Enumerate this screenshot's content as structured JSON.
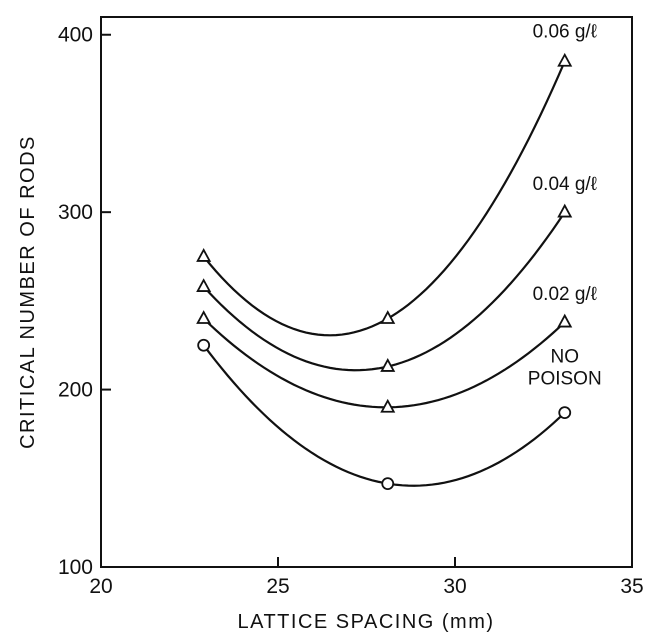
{
  "chart_data": {
    "type": "line",
    "xlabel": "LATTICE SPACING (mm)",
    "ylabel": "CRITICAL NUMBER OF RODS",
    "xlim": [
      20,
      35
    ],
    "ylim": [
      100,
      410
    ],
    "xticks": [
      20,
      25,
      30,
      35
    ],
    "yticks": [
      100,
      200,
      300,
      400
    ],
    "x": [
      22.9,
      28.1,
      33.1
    ],
    "series": [
      {
        "name": "0.06 g/ℓ",
        "label_lines": [
          "0.06 g/ℓ"
        ],
        "marker": "triangle",
        "values": [
          275,
          240,
          385
        ]
      },
      {
        "name": "0.04 g/ℓ",
        "label_lines": [
          "0.04 g/ℓ"
        ],
        "marker": "triangle",
        "values": [
          258,
          213,
          300
        ]
      },
      {
        "name": "0.02 g/ℓ",
        "label_lines": [
          "0.02 g/ℓ"
        ],
        "marker": "triangle",
        "values": [
          240,
          190,
          238
        ]
      },
      {
        "name": "NO POISON",
        "label_lines": [
          "NO",
          "POISON"
        ],
        "marker": "circle",
        "values": [
          225,
          147,
          187
        ]
      }
    ],
    "grid": false,
    "legend": "none"
  }
}
